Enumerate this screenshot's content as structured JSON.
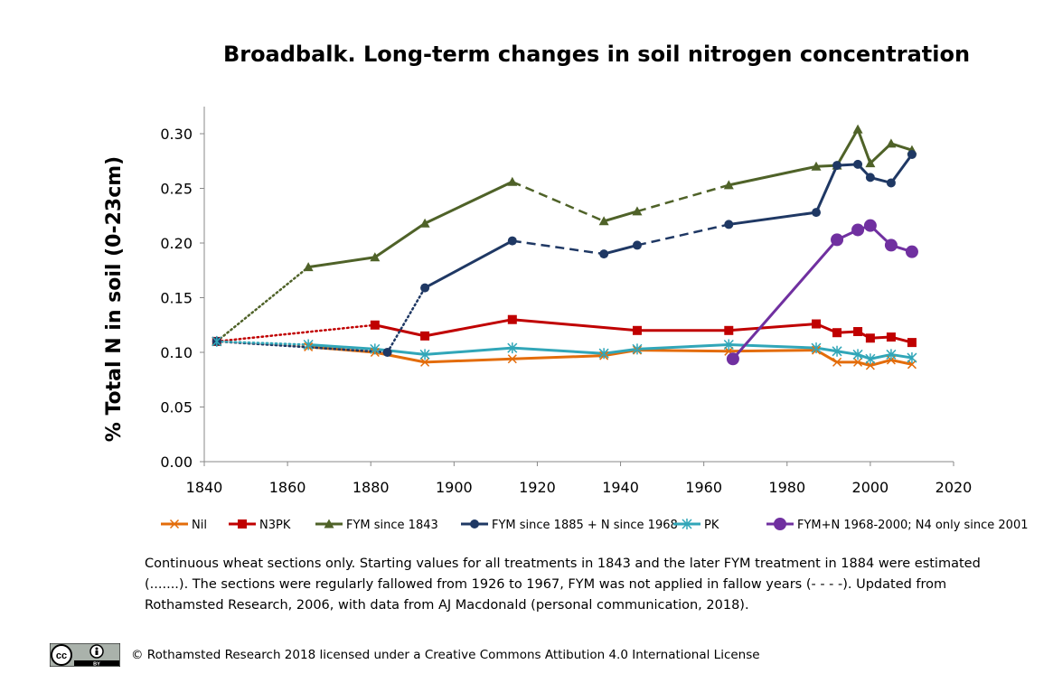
{
  "chart_data": {
    "type": "line",
    "title": "Broadbalk. Long-term changes in soil nitrogen concentration",
    "ylabel": "% Total N in soil (0-23cm)",
    "xlabel": "",
    "xlim": [
      1840,
      2020
    ],
    "ylim": [
      0,
      0.3
    ],
    "xticks": [
      {
        "value": 1840,
        "label": "1840"
      },
      {
        "value": 1860,
        "label": "1860"
      },
      {
        "value": 1880,
        "label": "1880"
      },
      {
        "value": 1900,
        "label": "1900"
      },
      {
        "value": 1920,
        "label": "1920"
      },
      {
        "value": 1940,
        "label": "1940"
      },
      {
        "value": 1960,
        "label": "1960"
      },
      {
        "value": 1980,
        "label": "1980"
      },
      {
        "value": 2000,
        "label": "2000"
      },
      {
        "value": 2020,
        "label": "2020"
      }
    ],
    "yticks": [
      {
        "value": 0,
        "label": "0.00"
      },
      {
        "value": 0.05,
        "label": "0.05"
      },
      {
        "value": 0.1,
        "label": "0.10"
      },
      {
        "value": 0.15,
        "label": "0.15"
      },
      {
        "value": 0.2,
        "label": "0.20"
      },
      {
        "value": 0.25,
        "label": "0.25"
      },
      {
        "value": 0.3,
        "label": "0.30"
      }
    ],
    "grid": false,
    "legend_position": "bottom",
    "series": [
      {
        "name": "Nil",
        "color": "#E36C0A",
        "marker": "x",
        "points": [
          [
            1843,
            0.11
          ],
          [
            1865,
            0.105
          ],
          [
            1881,
            0.1
          ],
          [
            1893,
            0.091
          ],
          [
            1914,
            0.094
          ],
          [
            1936,
            0.097
          ],
          [
            1944,
            0.102
          ],
          [
            1966,
            0.101
          ],
          [
            1987,
            0.102
          ],
          [
            1992,
            0.091
          ],
          [
            1997,
            0.091
          ],
          [
            2000,
            0.088
          ],
          [
            2005,
            0.093
          ],
          [
            2010,
            0.089
          ]
        ],
        "segments": [
          "dotted",
          "solid",
          "solid",
          "solid",
          "solid",
          "solid",
          "solid",
          "solid",
          "solid",
          "solid",
          "solid",
          "solid",
          "solid"
        ]
      },
      {
        "name": "N3PK",
        "color": "#C00000",
        "marker": "square",
        "points": [
          [
            1843,
            0.11
          ],
          [
            1881,
            0.125
          ],
          [
            1893,
            0.115
          ],
          [
            1914,
            0.13
          ],
          [
            1944,
            0.12
          ],
          [
            1966,
            0.12
          ],
          [
            1987,
            0.126
          ],
          [
            1992,
            0.118
          ],
          [
            1997,
            0.119
          ],
          [
            2000,
            0.113
          ],
          [
            2005,
            0.114
          ],
          [
            2010,
            0.109
          ]
        ],
        "segments": [
          "dotted",
          "solid",
          "solid",
          "solid",
          "solid",
          "solid",
          "solid",
          "solid",
          "solid",
          "solid",
          "solid"
        ]
      },
      {
        "name": "FYM since 1843",
        "color": "#4F6228",
        "marker": "triangle",
        "points": [
          [
            1843,
            0.11
          ],
          [
            1865,
            0.178
          ],
          [
            1881,
            0.187
          ],
          [
            1893,
            0.218
          ],
          [
            1914,
            0.256
          ],
          [
            1936,
            0.22
          ],
          [
            1944,
            0.229
          ],
          [
            1966,
            0.253
          ],
          [
            1987,
            0.27
          ],
          [
            1992,
            0.271
          ],
          [
            1997,
            0.304
          ],
          [
            2000,
            0.273
          ],
          [
            2005,
            0.291
          ],
          [
            2010,
            0.285
          ]
        ],
        "segments": [
          "dotted",
          "solid",
          "solid",
          "solid",
          "dashed",
          "solid",
          "dashed",
          "solid",
          "solid",
          "solid",
          "solid",
          "solid",
          "solid"
        ]
      },
      {
        "name": "FYM since 1885 + N since 1968",
        "color": "#1F3864",
        "marker": "circle",
        "points": [
          [
            1843,
            0.11
          ],
          [
            1884,
            0.1
          ],
          [
            1893,
            0.159
          ],
          [
            1914,
            0.202
          ],
          [
            1936,
            0.19
          ],
          [
            1944,
            0.198
          ],
          [
            1966,
            0.217
          ],
          [
            1987,
            0.228
          ],
          [
            1992,
            0.271
          ],
          [
            1997,
            0.272
          ],
          [
            2000,
            0.26
          ],
          [
            2005,
            0.255
          ],
          [
            2010,
            0.281
          ]
        ],
        "segments": [
          "dotted",
          "dotted",
          "solid",
          "dashed",
          "solid",
          "dashed",
          "solid",
          "solid",
          "solid",
          "solid",
          "solid",
          "solid"
        ]
      },
      {
        "name": "PK",
        "color": "#31A6B8",
        "marker": "star",
        "points": [
          [
            1843,
            0.11
          ],
          [
            1865,
            0.107
          ],
          [
            1881,
            0.103
          ],
          [
            1893,
            0.098
          ],
          [
            1914,
            0.104
          ],
          [
            1936,
            0.099
          ],
          [
            1944,
            0.103
          ],
          [
            1966,
            0.107
          ],
          [
            1987,
            0.104
          ],
          [
            1992,
            0.101
          ],
          [
            1997,
            0.098
          ],
          [
            2000,
            0.094
          ],
          [
            2005,
            0.098
          ],
          [
            2010,
            0.095
          ]
        ],
        "segments": [
          "dotted",
          "solid",
          "solid",
          "solid",
          "solid",
          "solid",
          "solid",
          "solid",
          "solid",
          "solid",
          "solid",
          "solid",
          "solid"
        ]
      },
      {
        "name": "FYM+N 1968-2000; N4 only since 2001",
        "color": "#7030A0",
        "marker": "bigcircle",
        "points": [
          [
            1967,
            0.094
          ],
          [
            1992,
            0.203
          ],
          [
            1997,
            0.212
          ],
          [
            2000,
            0.216
          ],
          [
            2005,
            0.198
          ],
          [
            2010,
            0.192
          ]
        ],
        "segments": [
          "solid",
          "solid",
          "solid",
          "solid",
          "solid"
        ]
      }
    ]
  },
  "caption": {
    "line1": "Continuous wheat sections only. Starting values for all treatments in 1843 and the later FYM treatment in 1884 were estimated",
    "line2": "(.......).  The sections were regularly fallowed from 1926 to 1967, FYM was not applied in fallow years (- - - -). Updated from",
    "line3": "Rothamsted Research, 2006, with data from AJ Macdonald (personal communication, 2018)."
  },
  "license": {
    "badge_cc": "cc",
    "badge_by": "BY",
    "text": "© Rothamsted Research 2018 licensed under a Creative Commons Attibution 4.0 International License"
  }
}
